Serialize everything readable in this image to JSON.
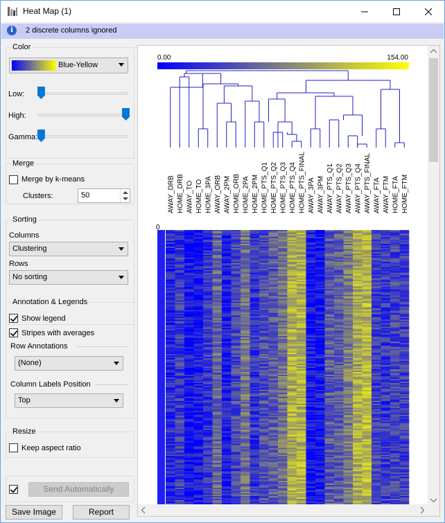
{
  "window": {
    "title": "Heat Map (1)",
    "info": "2 discrete columns ignored"
  },
  "color": {
    "group_title": "Color",
    "palette": "Blue-Yellow",
    "low_label": "Low:",
    "high_label": "High:",
    "gamma_label": "Gamma:",
    "low_level": 0.03,
    "high_level": 0.97,
    "gamma_level": 0.03
  },
  "merge": {
    "group_title": "Merge",
    "kmeans_label": "Merge by k-means",
    "kmeans_checked": false,
    "clusters_label": "Clusters:",
    "clusters_value": "50"
  },
  "sorting": {
    "group_title": "Sorting",
    "columns_label": "Columns",
    "columns_value": "Clustering",
    "rows_label": "Rows",
    "rows_value": "No sorting"
  },
  "annotation": {
    "group_title": "Annotation & Legends",
    "show_legend": "Show legend",
    "show_legend_checked": true,
    "stripes": "Stripes with averages",
    "stripes_checked": true,
    "row_annotations_label": "Row Annotations",
    "row_annotations_value": "(None)",
    "col_labels_position_label": "Column Labels Position",
    "col_labels_position_value": "Top"
  },
  "resize": {
    "group_title": "Resize",
    "keep_aspect": "Keep aspect ratio",
    "keep_aspect_checked": false
  },
  "footer": {
    "send_auto": "Send Automatically",
    "send_auto_checked": true,
    "save_image": "Save Image",
    "report": "Report"
  },
  "heatmap": {
    "legend_min": "0.00",
    "legend_max": "154.00",
    "row_label": "0",
    "columns": [
      "AWAY_DRB",
      "HOME_DRB",
      "AWAY_TO",
      "HOME_TO",
      "HOME_3PA",
      "AWAY_ORB",
      "AWAY_2PM",
      "HOME_ORB",
      "HOME_2PA",
      "HOME_2PM",
      "HOME_PTS_Q1",
      "HOME_PTS_Q2",
      "HOME_PTS_Q3",
      "HOME_PTS_Q4",
      "HOME_PTS_FINAL",
      "AWAY_3PA",
      "AWAY_3PM",
      "AWAY_PTS_Q1",
      "AWAY_PTS_Q2",
      "AWAY_PTS_Q3",
      "AWAY_PTS_Q4",
      "AWAY_PTS_FINAL",
      "AWAY_FTA",
      "AWAY_FTM",
      "HOME_FTA",
      "HOME_FTM"
    ],
    "column_mean_levels": [
      0.15,
      0.22,
      0.08,
      0.1,
      0.2,
      0.4,
      0.1,
      0.28,
      0.45,
      0.2,
      0.3,
      0.35,
      0.45,
      0.68,
      0.7,
      0.08,
      0.08,
      0.35,
      0.36,
      0.48,
      0.68,
      0.72,
      0.25,
      0.22,
      0.26,
      0.24
    ],
    "colors": {
      "low": "#0000ff",
      "mid": "#808080",
      "high": "#ffff00"
    }
  }
}
